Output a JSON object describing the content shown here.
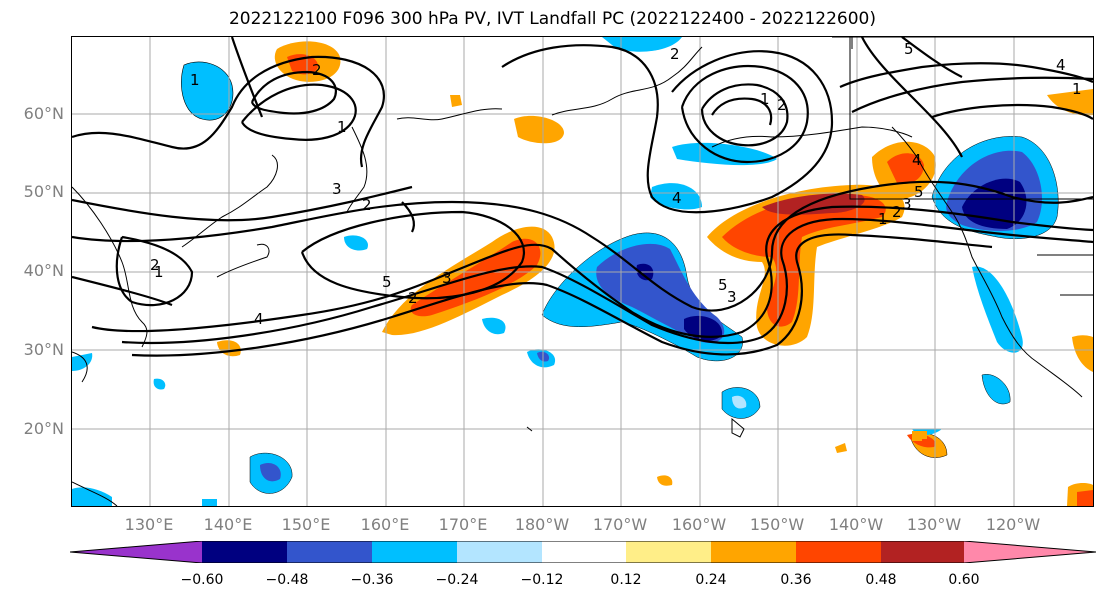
{
  "title": "2022122100 F096 300 hPa PV, IVT Landfall PC (2022122400 - 2022122600)",
  "lat_labels": [
    "60°N",
    "50°N",
    "40°N",
    "30°N",
    "20°N"
  ],
  "lon_labels": [
    "130°E",
    "140°E",
    "150°E",
    "160°E",
    "170°E",
    "180°W",
    "170°W",
    "160°W",
    "150°W",
    "140°W",
    "130°W",
    "120°W"
  ],
  "colorbar": {
    "colors": [
      "#9933cc",
      "#000080",
      "#3355cc",
      "#00bfff",
      "#b3e5ff",
      "#ffffff",
      "#ffee88",
      "#ffa500",
      "#ff4500",
      "#b22222",
      "#ff88aa"
    ],
    "tick_labels": [
      "−0.60",
      "−0.48",
      "−0.36",
      "−0.24",
      "−0.12",
      "0.12",
      "0.24",
      "0.36",
      "0.48",
      "0.60"
    ]
  },
  "contour_labels": [
    "2",
    "1",
    "2",
    "1",
    "3",
    "2",
    "4",
    "5",
    "3",
    "2",
    "1",
    "4",
    "5",
    "3",
    "2",
    "1",
    "2",
    "4",
    "5",
    "1",
    "2",
    "3",
    "4",
    "5",
    "1",
    "3",
    "4",
    "5",
    "1"
  ],
  "colors": {
    "axis_label_gray": "#808080",
    "grid_gray": "#aaaaaa",
    "contour_black": "#000000"
  }
}
